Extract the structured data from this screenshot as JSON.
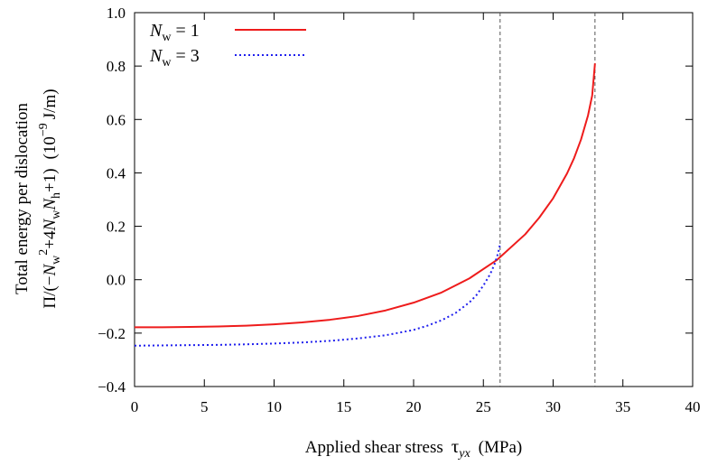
{
  "chart_data": {
    "type": "line",
    "xlabel": {
      "main": "Applied shear stress",
      "symbol": "τ",
      "subscript": "yx",
      "unit": "(MPa)"
    },
    "ylabel": {
      "line1": "Total energy per dislocation",
      "line2_parts": {
        "p1": "Π/(−",
        "n": "N",
        "w": "w",
        "sup2": "2",
        "p2": "+4",
        "h": "h",
        "p3": "+1)",
        "p4": "(10",
        "exp": "−9",
        "unit": "J/m)"
      }
    },
    "xlim": [
      0,
      40
    ],
    "ylim": [
      -0.4,
      1.0
    ],
    "xticks": [
      0,
      5,
      10,
      15,
      20,
      25,
      30,
      35,
      40
    ],
    "xtick_labels": [
      "0",
      "5",
      "10",
      "15",
      "20",
      "25",
      "30",
      "35",
      "40"
    ],
    "yticks": [
      -0.4,
      -0.2,
      0.0,
      0.2,
      0.4,
      0.6,
      0.8,
      1.0
    ],
    "ytick_labels": [
      "−0.4",
      "−0.2",
      "0.0",
      "0.2",
      "0.4",
      "0.6",
      "0.8",
      "1.0"
    ],
    "grid": false,
    "legend_position": "top-left",
    "series": [
      {
        "name": "N_w = 1",
        "legend": {
          "n": "N",
          "sub": "w",
          "eq": "= 1"
        },
        "color": "#ee1c1c",
        "dash": "solid",
        "x": [
          0,
          2,
          4,
          6,
          8,
          10,
          12,
          14,
          16,
          18,
          20,
          22,
          24,
          26,
          28,
          29,
          30,
          31,
          31.5,
          32,
          32.5,
          32.8,
          33.0
        ],
        "y": [
          -0.178,
          -0.178,
          -0.177,
          -0.175,
          -0.172,
          -0.167,
          -0.16,
          -0.15,
          -0.136,
          -0.115,
          -0.086,
          -0.048,
          0.005,
          0.075,
          0.17,
          0.232,
          0.305,
          0.398,
          0.455,
          0.525,
          0.615,
          0.69,
          0.81
        ]
      },
      {
        "name": "N_w = 3",
        "legend": {
          "n": "N",
          "sub": "w",
          "eq": "= 3"
        },
        "color": "#2020ee",
        "dash": "dotted",
        "x": [
          0,
          2,
          4,
          6,
          8,
          10,
          12,
          14,
          16,
          18,
          20,
          21,
          22,
          23,
          24,
          24.5,
          25,
          25.5,
          25.8,
          26.0,
          26.1,
          26.2
        ],
        "y": [
          -0.247,
          -0.246,
          -0.245,
          -0.244,
          -0.242,
          -0.239,
          -0.235,
          -0.229,
          -0.22,
          -0.208,
          -0.188,
          -0.172,
          -0.152,
          -0.125,
          -0.085,
          -0.058,
          -0.022,
          0.022,
          0.058,
          0.09,
          0.11,
          0.135
        ]
      }
    ],
    "vlines": [
      {
        "x": 26.2,
        "color": "#555555",
        "dash": "dashed"
      },
      {
        "x": 33.0,
        "color": "#555555",
        "dash": "dashed"
      }
    ]
  }
}
